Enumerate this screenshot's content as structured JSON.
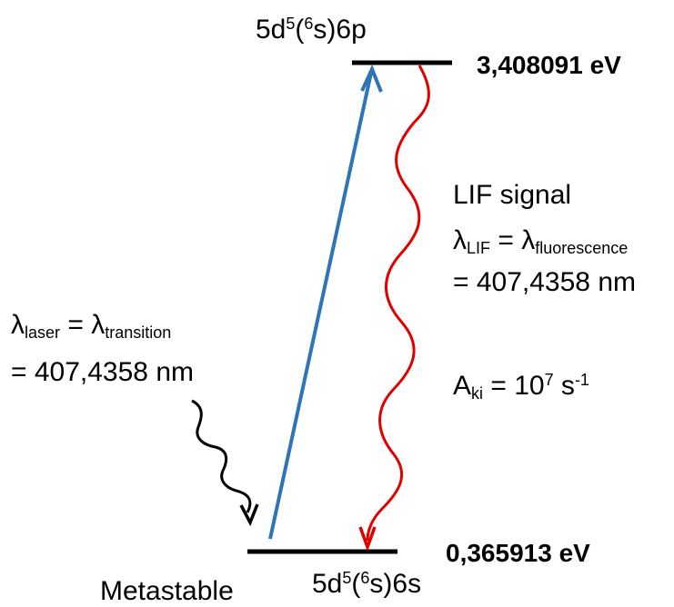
{
  "upper_level": {
    "config_prefix": "5d",
    "config_sup1": "5",
    "config_open": "(",
    "config_sup2": "6",
    "config_suffix": "s)6p",
    "energy": "3,408091 eV"
  },
  "lower_level": {
    "config_prefix": "5d",
    "config_sup1": "5",
    "config_open": "(",
    "config_sup2": "6",
    "config_suffix": "s)6s",
    "energy": "0,365913 eV",
    "state_label": "Metastable"
  },
  "laser": {
    "lambda": "λ",
    "sub1": "laser",
    "equals": " = ",
    "lambda2": "λ",
    "sub2": "transition",
    "value": "= 407,4358 nm"
  },
  "lif": {
    "title": "LIF signal",
    "lambda": "λ",
    "sub1": "LIF",
    "equals": " = ",
    "lambda2": "λ",
    "sub2": "fluorescence",
    "value": "= 407,4358 nm",
    "a_prefix": "A",
    "a_sub": "ki",
    "a_mid": " = 10",
    "a_exp": "7",
    "a_unit": " s",
    "a_unit_exp": "-1"
  },
  "colors": {
    "level_line": "#000000",
    "excitation_arrow": "#2e75b6",
    "fluorescence_wave": "#e00000",
    "laser_wave": "#000000"
  }
}
